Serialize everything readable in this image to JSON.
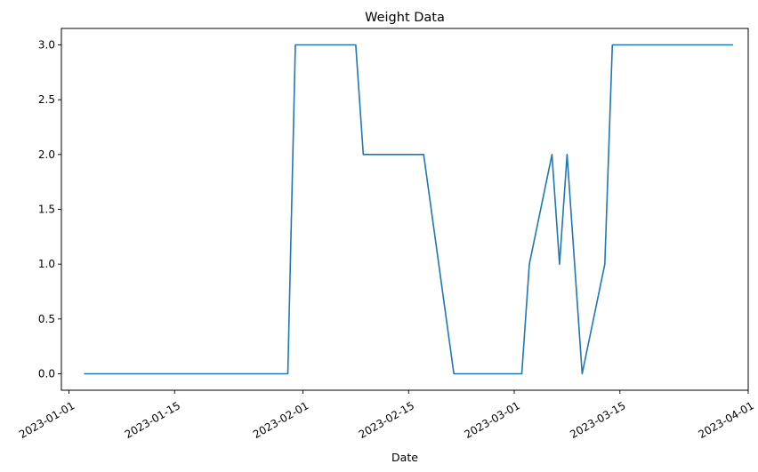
{
  "chart_data": {
    "type": "line",
    "title": "Weight Data",
    "xlabel": "Date",
    "ylabel": "",
    "grid": false,
    "legend": false,
    "line_color": "#1f77b4",
    "xlim": [
      "2022-12-31",
      "2023-04-01"
    ],
    "ylim": [
      -0.15,
      3.15
    ],
    "x_ticks": [
      "2023-01-01",
      "2023-01-15",
      "2023-02-01",
      "2023-02-15",
      "2023-03-01",
      "2023-03-15",
      "2023-04-01"
    ],
    "y_ticks": [
      0.0,
      0.5,
      1.0,
      1.5,
      2.0,
      2.5,
      3.0
    ],
    "y_tick_labels": [
      "0.0",
      "0.5",
      "1.0",
      "1.5",
      "2.0",
      "2.5",
      "3.0"
    ],
    "series": [
      {
        "x": [
          "2023-01-03",
          "2023-01-30",
          "2023-01-31",
          "2023-02-08",
          "2023-02-09",
          "2023-02-17",
          "2023-02-21",
          "2023-03-02",
          "2023-03-03",
          "2023-03-06",
          "2023-03-07",
          "2023-03-08",
          "2023-03-10",
          "2023-03-13",
          "2023-03-14",
          "2023-03-30"
        ],
        "y": [
          0,
          0,
          3,
          3,
          2,
          2,
          0,
          0,
          1,
          2,
          1,
          2,
          0,
          1,
          3,
          3
        ]
      }
    ]
  }
}
